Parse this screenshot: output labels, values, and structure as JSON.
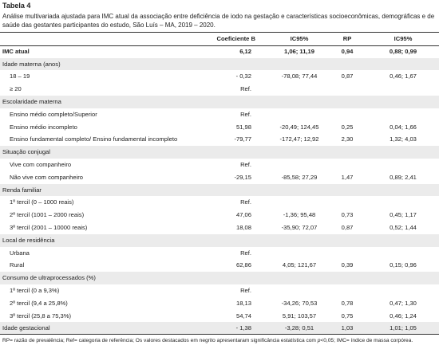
{
  "title": "Tabela 4",
  "caption": "Análise multivariada ajustada para IMC atual da associação entre deficiência de iodo na gestação e características socioeconômicas, demográficas e de saúde das gestantes participantes do estudo, São Luís – MA, 2019 – 2020.",
  "table": {
    "header": [
      "Coeficiente B",
      "IC95%",
      "RP",
      "IC95%"
    ],
    "rows": [
      {
        "style": "bold",
        "cells": [
          "IMC atual",
          "6,12",
          "1,06; 11,19",
          "0,94",
          "0,88; 0,99"
        ]
      },
      {
        "style": "section",
        "cells": [
          "Idade materna (anos)"
        ]
      },
      {
        "style": "item",
        "cells": [
          "18 – 19",
          "- 0,32",
          "-78,08; 77,44",
          "0,87",
          "0,46; 1,67"
        ]
      },
      {
        "style": "item",
        "cells": [
          "≥ 20",
          "Ref."
        ]
      },
      {
        "style": "section",
        "cells": [
          "Escolaridade materna"
        ]
      },
      {
        "style": "item",
        "cells": [
          "Ensino médio completo/Superior",
          "Ref."
        ]
      },
      {
        "style": "item",
        "cells": [
          "Ensino médio incompleto",
          "51,98",
          "-20,49; 124,45",
          "0,25",
          "0,04; 1,66"
        ]
      },
      {
        "style": "item",
        "cells": [
          "Ensino fundamental completo/ Ensino fundamental incompleto",
          "-79,77",
          "-172,47; 12,92",
          "2,30",
          "1,32; 4,03"
        ]
      },
      {
        "style": "section",
        "cells": [
          "Situação conjugal"
        ]
      },
      {
        "style": "item",
        "cells": [
          "Vive com companheiro",
          "Ref."
        ]
      },
      {
        "style": "item",
        "cells": [
          "Não vive com companheiro",
          "-29,15",
          "-85,58; 27,29",
          "1,47",
          "0,89; 2,41"
        ]
      },
      {
        "style": "section",
        "cells": [
          "Renda familiar"
        ]
      },
      {
        "style": "item",
        "cells": [
          "1º tercil (0 – 1000 reais)",
          "Ref."
        ]
      },
      {
        "style": "item",
        "cells": [
          "2º tercil (1001 – 2000 reais)",
          "47,06",
          "-1,36; 95,48",
          "0,73",
          "0,45; 1,17"
        ]
      },
      {
        "style": "item",
        "cells": [
          "3º tercil (2001 – 10000 reais)",
          "18,08",
          "-35,90; 72,07",
          "0,87",
          "0,52; 1,44"
        ]
      },
      {
        "style": "section",
        "cells": [
          "Local de residência"
        ]
      },
      {
        "style": "item",
        "cells": [
          "Urbana",
          "Ref."
        ]
      },
      {
        "style": "item",
        "cells": [
          "Rural",
          "62,86",
          "4,05; 121,67",
          "0,39",
          "0,15; 0,96"
        ]
      },
      {
        "style": "section",
        "cells": [
          "Consumo de ultraprocessados (%)"
        ]
      },
      {
        "style": "item",
        "cells": [
          "1º tercil (0 a 9,3%)",
          "Ref."
        ]
      },
      {
        "style": "item",
        "cells": [
          "2º tercil (9,4 a 25,8%)",
          "18,13",
          "-34,26; 70,53",
          "0,78",
          "0,47; 1,30"
        ]
      },
      {
        "style": "item",
        "cells": [
          "3º tercil (25,8 a 75,3%)",
          "54,74",
          "5,91; 103,57",
          "0,75",
          "0,46; 1,24"
        ]
      },
      {
        "style": "section",
        "cells": [
          "Idade gestacional",
          "- 1,38",
          "-3,28; 0,51",
          "1,03",
          "1,01; 1,05"
        ]
      }
    ]
  },
  "footnote": [
    "RP= razão de prevalência; Ref= categoria de referência; Os valores destacados em negrito apresentaram significância estatística com ",
    "p",
    "<0,05; IMC= índice de massa corpórea."
  ]
}
